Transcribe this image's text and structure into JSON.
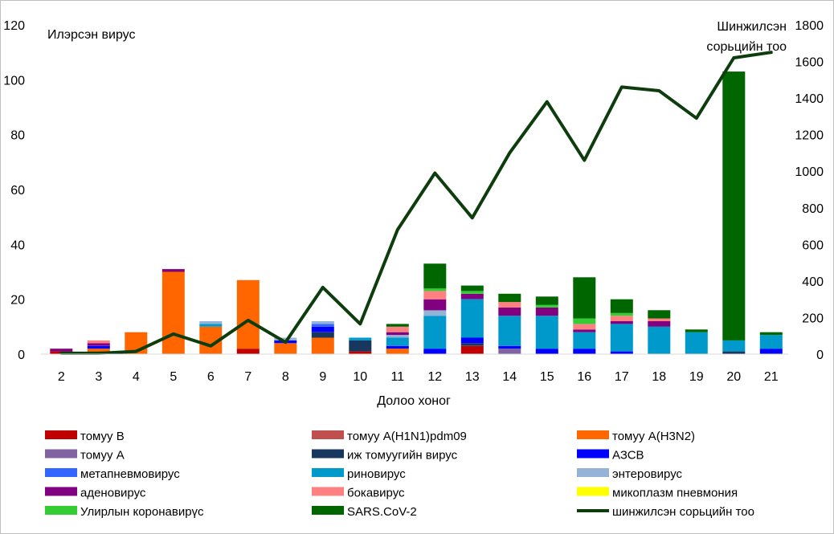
{
  "chart_data": {
    "type": "bar",
    "stacked": true,
    "title": "",
    "xlabel": "Долоо хоног",
    "ylabel": "Илэрсэн вирус",
    "y2label_lines": [
      "Шинжилсэн",
      "сорьцийн тоо"
    ],
    "ylim": [
      0,
      120
    ],
    "yticks": [
      0,
      20,
      40,
      60,
      80,
      100,
      120
    ],
    "y2lim": [
      0,
      1800
    ],
    "y2ticks": [
      0,
      200,
      400,
      600,
      800,
      1000,
      1200,
      1400,
      1600,
      1800
    ],
    "grid": false,
    "legend_position": "bottom",
    "categories": [
      "2",
      "3",
      "4",
      "5",
      "6",
      "7",
      "8",
      "9",
      "10",
      "11",
      "12",
      "13",
      "14",
      "15",
      "16",
      "17",
      "18",
      "19",
      "20",
      "21"
    ],
    "series": [
      {
        "name": "томуу B",
        "color": "#c00000",
        "values": [
          1,
          0,
          0,
          0,
          0,
          2,
          0,
          0,
          1,
          0,
          0,
          3,
          0,
          0,
          0,
          0,
          0,
          0,
          0,
          0
        ]
      },
      {
        "name": "томуу A(H1N1)pdm09",
        "color": "#c0504d",
        "values": [
          0,
          0,
          0,
          0,
          0,
          0,
          0,
          0,
          0,
          0,
          0,
          0,
          0,
          0,
          0,
          0,
          0,
          0,
          0,
          0
        ]
      },
      {
        "name": "томуу A(H3N2)",
        "color": "#ff6600",
        "values": [
          0,
          2,
          8,
          30,
          10,
          25,
          4,
          6,
          0,
          2,
          0,
          0,
          0,
          0,
          0,
          0,
          0,
          0,
          0,
          0
        ]
      },
      {
        "name": "томуу A",
        "color": "#8064a2",
        "values": [
          0,
          0,
          0,
          0,
          0,
          0,
          0,
          0,
          0,
          0,
          0,
          0,
          2,
          0,
          0,
          0,
          0,
          0,
          0,
          0
        ]
      },
      {
        "name": "иж томуугийн вирус",
        "color": "#17375e",
        "values": [
          0,
          0,
          0,
          0,
          0,
          0,
          0,
          2,
          4,
          0,
          0,
          1,
          0,
          0,
          0,
          0,
          0,
          0,
          1,
          0
        ]
      },
      {
        "name": "АЗСВ",
        "color": "#0000ff",
        "values": [
          0,
          1,
          0,
          0,
          0,
          0,
          1,
          2,
          0,
          1,
          2,
          2,
          1,
          2,
          2,
          1,
          0,
          0,
          0,
          2
        ]
      },
      {
        "name": "метапневмовирус",
        "color": "#3366ff",
        "values": [
          0,
          0,
          0,
          0,
          0,
          0,
          0,
          1,
          0,
          0,
          0,
          0,
          0,
          0,
          0,
          0,
          0,
          0,
          0,
          0
        ]
      },
      {
        "name": "риновирус",
        "color": "#0099cc",
        "values": [
          0,
          0,
          0,
          0,
          1,
          0,
          0,
          0,
          1,
          3,
          12,
          14,
          11,
          12,
          6,
          10,
          10,
          8,
          4,
          5
        ]
      },
      {
        "name": "энтеровирус",
        "color": "#95b3d7",
        "values": [
          0,
          0,
          0,
          0,
          1,
          0,
          1,
          1,
          0,
          1,
          2,
          0,
          0,
          0,
          0,
          0,
          0,
          0,
          0,
          0
        ]
      },
      {
        "name": "аденовирус",
        "color": "#800080",
        "values": [
          1,
          1,
          0,
          1,
          0,
          0,
          0,
          0,
          0,
          1,
          4,
          2,
          3,
          3,
          1,
          1,
          2,
          0,
          0,
          0
        ]
      },
      {
        "name": "бокавирус",
        "color": "#ff8080",
        "values": [
          0,
          1,
          0,
          0,
          0,
          0,
          0,
          0,
          0,
          2,
          3,
          0,
          2,
          0,
          2,
          2,
          1,
          0,
          0,
          0
        ]
      },
      {
        "name": "микоплазм пневмония",
        "color": "#ffff00",
        "values": [
          0,
          0,
          0,
          0,
          0,
          0,
          0,
          0,
          0,
          0,
          0,
          0,
          0,
          0,
          0,
          0,
          0,
          0,
          0,
          0
        ]
      },
      {
        "name": "Улирлын коронавирүс",
        "color": "#33cc33",
        "values": [
          0,
          0,
          0,
          0,
          0,
          0,
          0,
          0,
          0,
          0,
          1,
          1,
          0,
          1,
          2,
          1,
          0,
          0,
          0,
          0
        ]
      },
      {
        "name": "SARS.CoV-2",
        "color": "#006600",
        "values": [
          0,
          0,
          0,
          0,
          0,
          0,
          0,
          0,
          0,
          1,
          9,
          2,
          3,
          3,
          15,
          5,
          3,
          1,
          98,
          1
        ]
      }
    ],
    "line_series": {
      "name": "шинжилсэн сорьцийн тоо",
      "color": "#0d3d0d",
      "axis": "secondary",
      "values": [
        5,
        5,
        15,
        110,
        45,
        185,
        65,
        365,
        165,
        680,
        990,
        745,
        1100,
        1380,
        1060,
        1460,
        1440,
        1290,
        1620,
        1650
      ]
    }
  }
}
